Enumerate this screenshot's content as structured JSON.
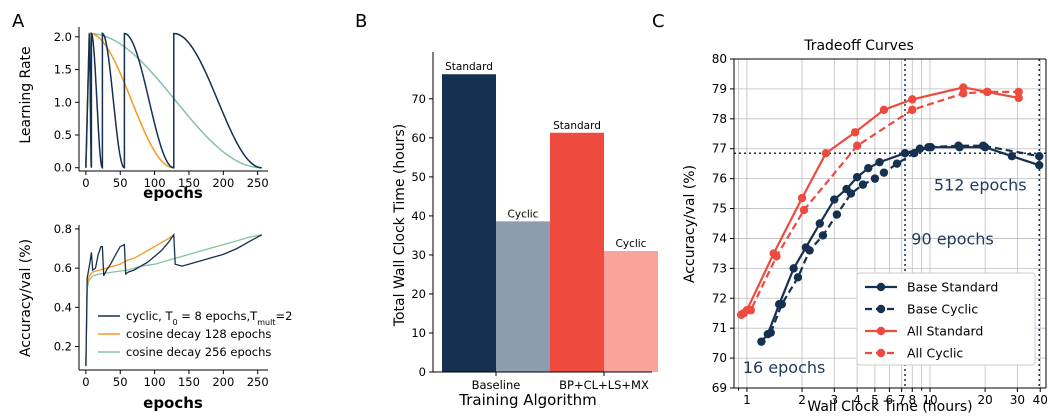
{
  "panels": {
    "A": "A",
    "B": "B",
    "C": "C"
  },
  "colors": {
    "navy": "#16304f",
    "orange": "#f39a22",
    "green": "#86c2a6",
    "gray": "#8c9daf",
    "red": "#ef4a3e",
    "pink": "#f9a39b",
    "axis": "#000000",
    "grid": "#bdbdbd"
  },
  "chart_data": [
    {
      "id": "lr",
      "type": "line",
      "xlabel": "epochs",
      "ylabel": "Learning Rate",
      "xlim": [
        -10,
        265
      ],
      "ylim": [
        -0.05,
        2.15
      ],
      "xticks": [
        0,
        50,
        100,
        150,
        200,
        250
      ],
      "xtick_labels": [
        "0",
        "50",
        "100",
        "150",
        "200",
        "250"
      ],
      "yticks": [
        0,
        0.5,
        1,
        1.5,
        2
      ],
      "ytick_labels": [
        "0.0",
        "0.5",
        "1.0",
        "1.5",
        "2.0"
      ],
      "max_lr": 2.05,
      "warmup_end": 5,
      "series": [
        {
          "key": "cyclic",
          "restarts": [
            0,
            8,
            24,
            56,
            128,
            256
          ]
        },
        {
          "key": "cos128",
          "end": 128
        },
        {
          "key": "cos256",
          "end": 256
        }
      ]
    },
    {
      "id": "acc",
      "type": "line",
      "xlabel": "epochs",
      "ylabel": "Accuracy/val (%)",
      "xlim": [
        -10,
        265
      ],
      "ylim": [
        0.08,
        0.82
      ],
      "xticks": [
        0,
        50,
        100,
        150,
        200,
        250
      ],
      "xtick_labels": [
        "0",
        "50",
        "100",
        "150",
        "200",
        "250"
      ],
      "yticks": [
        0.2,
        0.4,
        0.6,
        0.8
      ],
      "ytick_labels": [
        "0.2",
        "0.4",
        "0.6",
        "0.8"
      ],
      "legend_position": "lower-right",
      "series": [
        {
          "key": "cyclic",
          "name": "cyclic, T₀ = 8 epochs,Tₘᵤₗₜ=2",
          "x": [
            0,
            2,
            4,
            6,
            8,
            10,
            14,
            18,
            22,
            24,
            26,
            30,
            36,
            42,
            50,
            56,
            58,
            62,
            70,
            80,
            90,
            100,
            110,
            120,
            128,
            130,
            140,
            160,
            180,
            200,
            220,
            240,
            256
          ],
          "y": [
            0.1,
            0.55,
            0.59,
            0.63,
            0.68,
            0.59,
            0.6,
            0.67,
            0.71,
            0.71,
            0.56,
            0.59,
            0.62,
            0.66,
            0.71,
            0.72,
            0.57,
            0.58,
            0.59,
            0.61,
            0.63,
            0.66,
            0.69,
            0.73,
            0.77,
            0.62,
            0.61,
            0.63,
            0.65,
            0.67,
            0.7,
            0.74,
            0.77
          ]
        },
        {
          "key": "cos128",
          "name": "cosine decay  128 epochs",
          "x": [
            0,
            2,
            5,
            10,
            20,
            30,
            40,
            50,
            60,
            70,
            80,
            90,
            100,
            110,
            120,
            128
          ],
          "y": [
            0.1,
            0.52,
            0.56,
            0.58,
            0.59,
            0.6,
            0.61,
            0.62,
            0.64,
            0.65,
            0.67,
            0.69,
            0.71,
            0.73,
            0.75,
            0.77
          ]
        },
        {
          "key": "cos256",
          "name": "cosine decay  256 epochs",
          "x": [
            0,
            2,
            5,
            10,
            20,
            40,
            60,
            80,
            100,
            120,
            140,
            160,
            180,
            200,
            220,
            240,
            256
          ],
          "y": [
            0.1,
            0.5,
            0.54,
            0.56,
            0.57,
            0.58,
            0.59,
            0.61,
            0.62,
            0.64,
            0.66,
            0.68,
            0.7,
            0.72,
            0.74,
            0.76,
            0.77
          ]
        }
      ]
    },
    {
      "id": "bar",
      "type": "bar",
      "xlabel": "Training Algorithm",
      "ylabel": "Total Wall Clock Time (hours)",
      "ylim": [
        0,
        82
      ],
      "yticks": [
        0,
        10,
        20,
        30,
        40,
        50,
        60,
        70
      ],
      "ytick_labels": [
        "0",
        "10",
        "20",
        "30",
        "40",
        "50",
        "60",
        "70"
      ],
      "categories": [
        "Baseline",
        "BP+CL+LS+MX"
      ],
      "bars": [
        {
          "group": 0,
          "label": "Standard",
          "value": 76.3,
          "color": "navy"
        },
        {
          "group": 0,
          "label": "Cyclic",
          "value": 38.6,
          "color": "gray"
        },
        {
          "group": 1,
          "label": "Standard",
          "value": 61.3,
          "color": "red"
        },
        {
          "group": 1,
          "label": "Cyclic",
          "value": 31.0,
          "color": "pink"
        }
      ]
    },
    {
      "id": "tradeoff",
      "type": "line",
      "title": "Tradeoff Curves",
      "xlabel": "Wall Clock Time (hours)",
      "ylabel": "Accuracy/val (%)",
      "xscale": "log",
      "xlim": [
        0.85,
        43
      ],
      "ylim": [
        69,
        80
      ],
      "xticks": [
        1,
        2,
        3,
        4,
        5,
        6,
        7,
        8,
        10,
        20,
        30,
        40
      ],
      "xtick_labels": [
        "1",
        "2",
        "3",
        "4",
        "5",
        "6",
        "7",
        "8",
        "10",
        "20",
        "30",
        "40"
      ],
      "minor_xticks": [
        0.9,
        9,
        50
      ],
      "yticks": [
        69,
        70,
        71,
        72,
        73,
        74,
        75,
        76,
        77,
        78,
        79,
        80
      ],
      "ytick_labels": [
        "69",
        "70",
        "71",
        "72",
        "73",
        "74",
        "75",
        "76",
        "77",
        "78",
        "79",
        "80"
      ],
      "grid": true,
      "legend_position": "lower-right",
      "hline": 76.85,
      "vlines": [
        7.3,
        39.5
      ],
      "annotations": [
        {
          "text": "16 epochs",
          "x": 0.95,
          "y": 69.5
        },
        {
          "text": "90 epochs",
          "x": 7.9,
          "y": 73.8
        },
        {
          "text": "512 epochs",
          "x": 10.5,
          "y": 75.6
        }
      ],
      "series": [
        {
          "name": "Base Standard",
          "color": "navy",
          "dash": false,
          "x": [
            1.2,
            1.3,
            1.5,
            1.8,
            2.1,
            2.5,
            3.0,
            3.5,
            4.0,
            4.6,
            5.3,
            7.3,
            8.8,
            10.1,
            14.5,
            20,
            28,
            39.5
          ],
          "y": [
            70.55,
            70.8,
            71.8,
            73.0,
            73.7,
            74.5,
            75.3,
            75.65,
            76.05,
            76.35,
            76.55,
            76.85,
            77.0,
            77.05,
            77.05,
            77.05,
            76.75,
            76.45
          ]
        },
        {
          "name": "Base Cyclic",
          "color": "navy",
          "dash": true,
          "x": [
            1.35,
            1.55,
            1.9,
            2.2,
            2.6,
            3.1,
            3.7,
            4.3,
            5.0,
            5.6,
            6.6,
            8.2,
            9.8,
            14.3,
            19.5,
            39.5
          ],
          "y": [
            70.85,
            71.8,
            72.7,
            73.6,
            74.1,
            74.8,
            75.5,
            75.8,
            76.0,
            76.2,
            76.5,
            76.85,
            77.05,
            77.1,
            77.1,
            76.75
          ]
        },
        {
          "name": "All Standard",
          "color": "red",
          "dash": false,
          "x": [
            0.93,
            1.0,
            1.4,
            2.0,
            2.7,
            3.9,
            5.6,
            8.0,
            15.2,
            20.6,
            30.5
          ],
          "y": [
            71.45,
            71.6,
            73.5,
            75.35,
            76.85,
            77.55,
            78.3,
            78.65,
            79.05,
            78.9,
            78.7
          ]
        },
        {
          "name": "All Cyclic",
          "color": "red",
          "dash": true,
          "x": [
            0.96,
            1.05,
            1.45,
            2.05,
            4.0,
            8.0,
            15.2,
            20.5,
            30.5
          ],
          "y": [
            71.5,
            71.6,
            73.4,
            74.95,
            77.1,
            78.3,
            78.85,
            78.9,
            78.9
          ]
        }
      ]
    }
  ]
}
